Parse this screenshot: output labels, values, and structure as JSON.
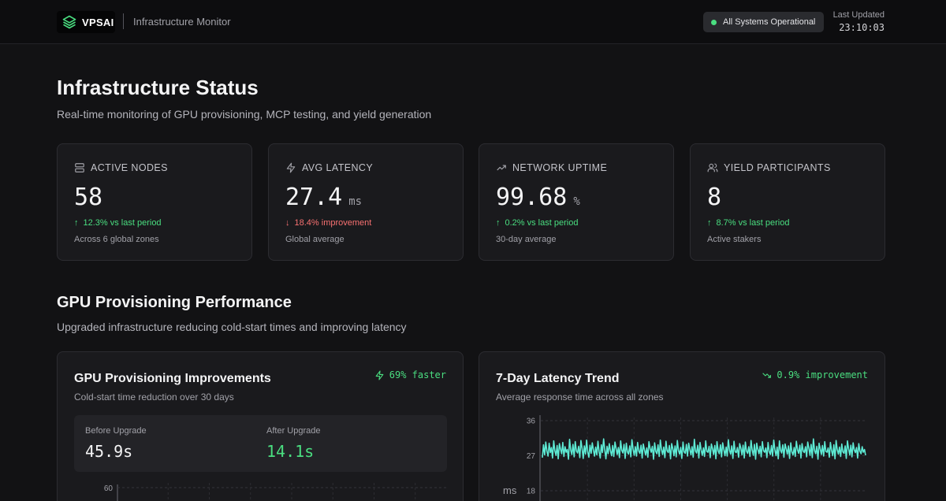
{
  "header": {
    "brand": "VPSAI",
    "subtitle": "Infrastructure Monitor",
    "status": "All Systems Operational",
    "last_updated_label": "Last Updated",
    "last_updated_time": "23:10:03",
    "icons": {
      "logo": "layers-icon",
      "status": "status-dot"
    }
  },
  "page": {
    "title": "Infrastructure Status",
    "subtitle": "Real-time monitoring of GPU provisioning, MCP testing, and yield generation"
  },
  "stats": [
    {
      "icon": "server-icon",
      "label": "ACTIVE NODES",
      "value": "58",
      "unit": "",
      "change": "12.3% vs last period",
      "direction": "up",
      "foot": "Across 6 global zones"
    },
    {
      "icon": "zap-icon",
      "label": "AVG LATENCY",
      "value": "27.4",
      "unit": "ms",
      "change": "18.4% improvement",
      "direction": "down",
      "foot": "Global average"
    },
    {
      "icon": "trending-up-icon",
      "label": "NETWORK UPTIME",
      "value": "99.68",
      "unit": "%",
      "change": "0.2% vs last period",
      "direction": "up",
      "foot": "30-day average"
    },
    {
      "icon": "users-icon",
      "label": "YIELD PARTICIPANTS",
      "value": "8",
      "unit": "",
      "change": "8.7% vs last period",
      "direction": "up",
      "foot": "Active stakers"
    }
  ],
  "colors": {
    "positive": "#4ade80",
    "negative": "#f87171",
    "line": "#5eead4"
  },
  "section": {
    "title": "GPU Provisioning Performance",
    "subtitle": "Upgraded infrastructure reducing cold-start times and improving latency"
  },
  "gpu_panel": {
    "title": "GPU Provisioning Improvements",
    "subtitle": "Cold-start time reduction over 30 days",
    "badge": "69% faster",
    "badge_icon": "zap-icon",
    "before_label": "Before Upgrade",
    "before_value": "45.9s",
    "after_label": "After Upgrade",
    "after_value": "14.1s",
    "axis_top_tick": "60"
  },
  "latency_panel": {
    "title": "7-Day Latency Trend",
    "subtitle": "Average response time across all zones",
    "badge": "0.9% improvement",
    "badge_icon": "trending-down-icon"
  },
  "chart_data": {
    "type": "line",
    "title": "7-Day Latency Trend",
    "ylabel": "ms",
    "ylim": [
      18,
      36
    ],
    "y_ticks": [
      "36",
      "27",
      "18"
    ],
    "grid": true,
    "series": [
      {
        "values": [
          26.5,
          29.8,
          27.2,
          30.5,
          28.1,
          26.9,
          30.2,
          27.8,
          29.1,
          26.4,
          30.8,
          28.3,
          27.1,
          29.6,
          26.2,
          30.1,
          28.7,
          27.5,
          30.4,
          26.8,
          29.3,
          27.9,
          28.6,
          26.1,
          31.2,
          28.4,
          27.3,
          29.9,
          26.7,
          30.6,
          28.2,
          27.7,
          29.4,
          26.5,
          30.9,
          28.8,
          26.3,
          29.5,
          27.4,
          31.0,
          28.0,
          26.6,
          29.7,
          27.6,
          30.3,
          28.5,
          26.9,
          29.2,
          27.2,
          30.7,
          28.1,
          26.4,
          29.8,
          27.8,
          31.3,
          28.6,
          26.2,
          29.4,
          27.5,
          30.1,
          28.3,
          27.0,
          29.6,
          26.8,
          30.5,
          28.9,
          27.3,
          29.1,
          26.5,
          30.8,
          28.4,
          27.7,
          29.9,
          26.3,
          30.2,
          28.0,
          27.4,
          29.5,
          26.7,
          31.1,
          28.7,
          27.1,
          29.3,
          26.9,
          30.4,
          28.2,
          27.6,
          29.7,
          26.4,
          30.0,
          28.5,
          27.2,
          29.0,
          26.6,
          30.6,
          28.8,
          27.9,
          29.4,
          26.1,
          30.3,
          28.1,
          27.5,
          29.8,
          26.8,
          31.0,
          28.6,
          27.3,
          29.2,
          26.5,
          30.7,
          28.3,
          27.8,
          29.6,
          26.2,
          30.1,
          28.9,
          27.0,
          29.5,
          26.7,
          30.9,
          28.4,
          27.4,
          29.1,
          26.3,
          30.5,
          28.0,
          27.6,
          29.9,
          26.9,
          30.2,
          28.7,
          27.2,
          29.3,
          26.6,
          31.2,
          28.2,
          27.7,
          29.7,
          26.4,
          30.4,
          28.5,
          27.1,
          29.0,
          26.8,
          30.8,
          28.1,
          27.9,
          29.4,
          26.5,
          30.0,
          28.8,
          27.3,
          29.6,
          26.2,
          30.6,
          28.3,
          27.5,
          29.8,
          26.7,
          30.3,
          28.6,
          27.0,
          29.2,
          26.9,
          31.1,
          28.4,
          27.4,
          29.5,
          26.3,
          30.7,
          28.0,
          27.8,
          29.1,
          26.6,
          30.1,
          28.9,
          27.2,
          29.7,
          26.4,
          30.5,
          28.2,
          27.6,
          29.3,
          26.8,
          30.9,
          28.5,
          27.1,
          29.9,
          26.1,
          30.2,
          28.7,
          27.5,
          29.4,
          26.7,
          30.6,
          28.3,
          27.9,
          29.0,
          26.5,
          30.4,
          28.1,
          27.3,
          29.6,
          26.9,
          31.0,
          28.6,
          27.0,
          29.2,
          26.2,
          30.8,
          28.4,
          27.7,
          29.8,
          26.6,
          30.0,
          28.8,
          27.4,
          29.5,
          26.3,
          30.3,
          28.0,
          27.2,
          29.1,
          26.8,
          30.7,
          28.5,
          27.6,
          29.7,
          26.4,
          30.1,
          28.2,
          27.8,
          29.3,
          26.7,
          30.5,
          28.9,
          27.1,
          29.9,
          26.5,
          31.3,
          28.3,
          27.5,
          29.4,
          26.1,
          30.2,
          28.7,
          27.3,
          29.6,
          26.9,
          30.6,
          28.1,
          27.9,
          29.0,
          26.6,
          30.4,
          28.4,
          27.0,
          29.8,
          26.2,
          30.9,
          28.6,
          27.4,
          29.2,
          26.8,
          30.0,
          28.0,
          27.6,
          29.5,
          26.3,
          30.8,
          28.8,
          27.2,
          29.7,
          26.7,
          30.3,
          28.5,
          27.8,
          29.1,
          26.4,
          30.1,
          28.2,
          27.5,
          29.3,
          27.9,
          28.6,
          27.1
        ]
      }
    ]
  },
  "gpu_chart": {
    "type": "line",
    "y_ticks": [
      "60"
    ],
    "grid": true
  }
}
